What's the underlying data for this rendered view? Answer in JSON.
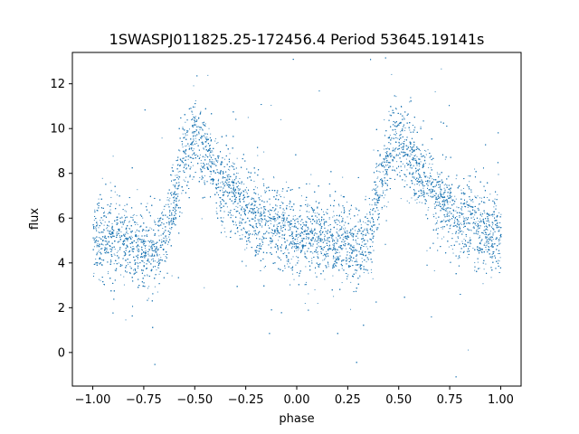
{
  "chart_data": {
    "type": "scatter",
    "title": "1SWASPJ011825.25-172456.4 Period 53645.19141s",
    "xlabel": "phase",
    "ylabel": "flux",
    "xlim": [
      -1.1,
      1.1
    ],
    "ylim": [
      -1.5,
      13.4
    ],
    "xticks": [
      -1.0,
      -0.75,
      -0.5,
      -0.25,
      0.0,
      0.25,
      0.5,
      0.75,
      1.0
    ],
    "xtick_labels": [
      "−1.00",
      "−0.75",
      "−0.50",
      "−0.25",
      "0.00",
      "0.25",
      "0.50",
      "0.75",
      "1.00"
    ],
    "yticks": [
      0,
      2,
      4,
      6,
      8,
      10,
      12
    ],
    "ytick_labels": [
      "0",
      "2",
      "4",
      "6",
      "8",
      "10",
      "12"
    ],
    "grid": false,
    "marker_color": "#1f77b4",
    "series": [
      {
        "phase_range": [
          -1.0,
          1.0
        ],
        "profile_x": [
          -1.0,
          -0.8,
          -0.7,
          -0.65,
          -0.6,
          -0.55,
          -0.52,
          -0.5,
          -0.45,
          -0.4,
          -0.3,
          -0.2,
          -0.1,
          0.0,
          0.1,
          0.2,
          0.3,
          0.35,
          0.4,
          0.45,
          0.48,
          0.5,
          0.55,
          0.6,
          0.7,
          0.8,
          0.9,
          1.0
        ],
        "profile_y": [
          5.1,
          4.8,
          4.5,
          5.2,
          7.0,
          8.9,
          9.5,
          9.7,
          8.9,
          8.0,
          6.8,
          6.0,
          5.6,
          5.3,
          5.1,
          4.9,
          4.7,
          5.1,
          7.1,
          8.9,
          9.6,
          9.7,
          8.9,
          8.0,
          6.8,
          6.0,
          5.5,
          5.1
        ]
      }
    ]
  }
}
